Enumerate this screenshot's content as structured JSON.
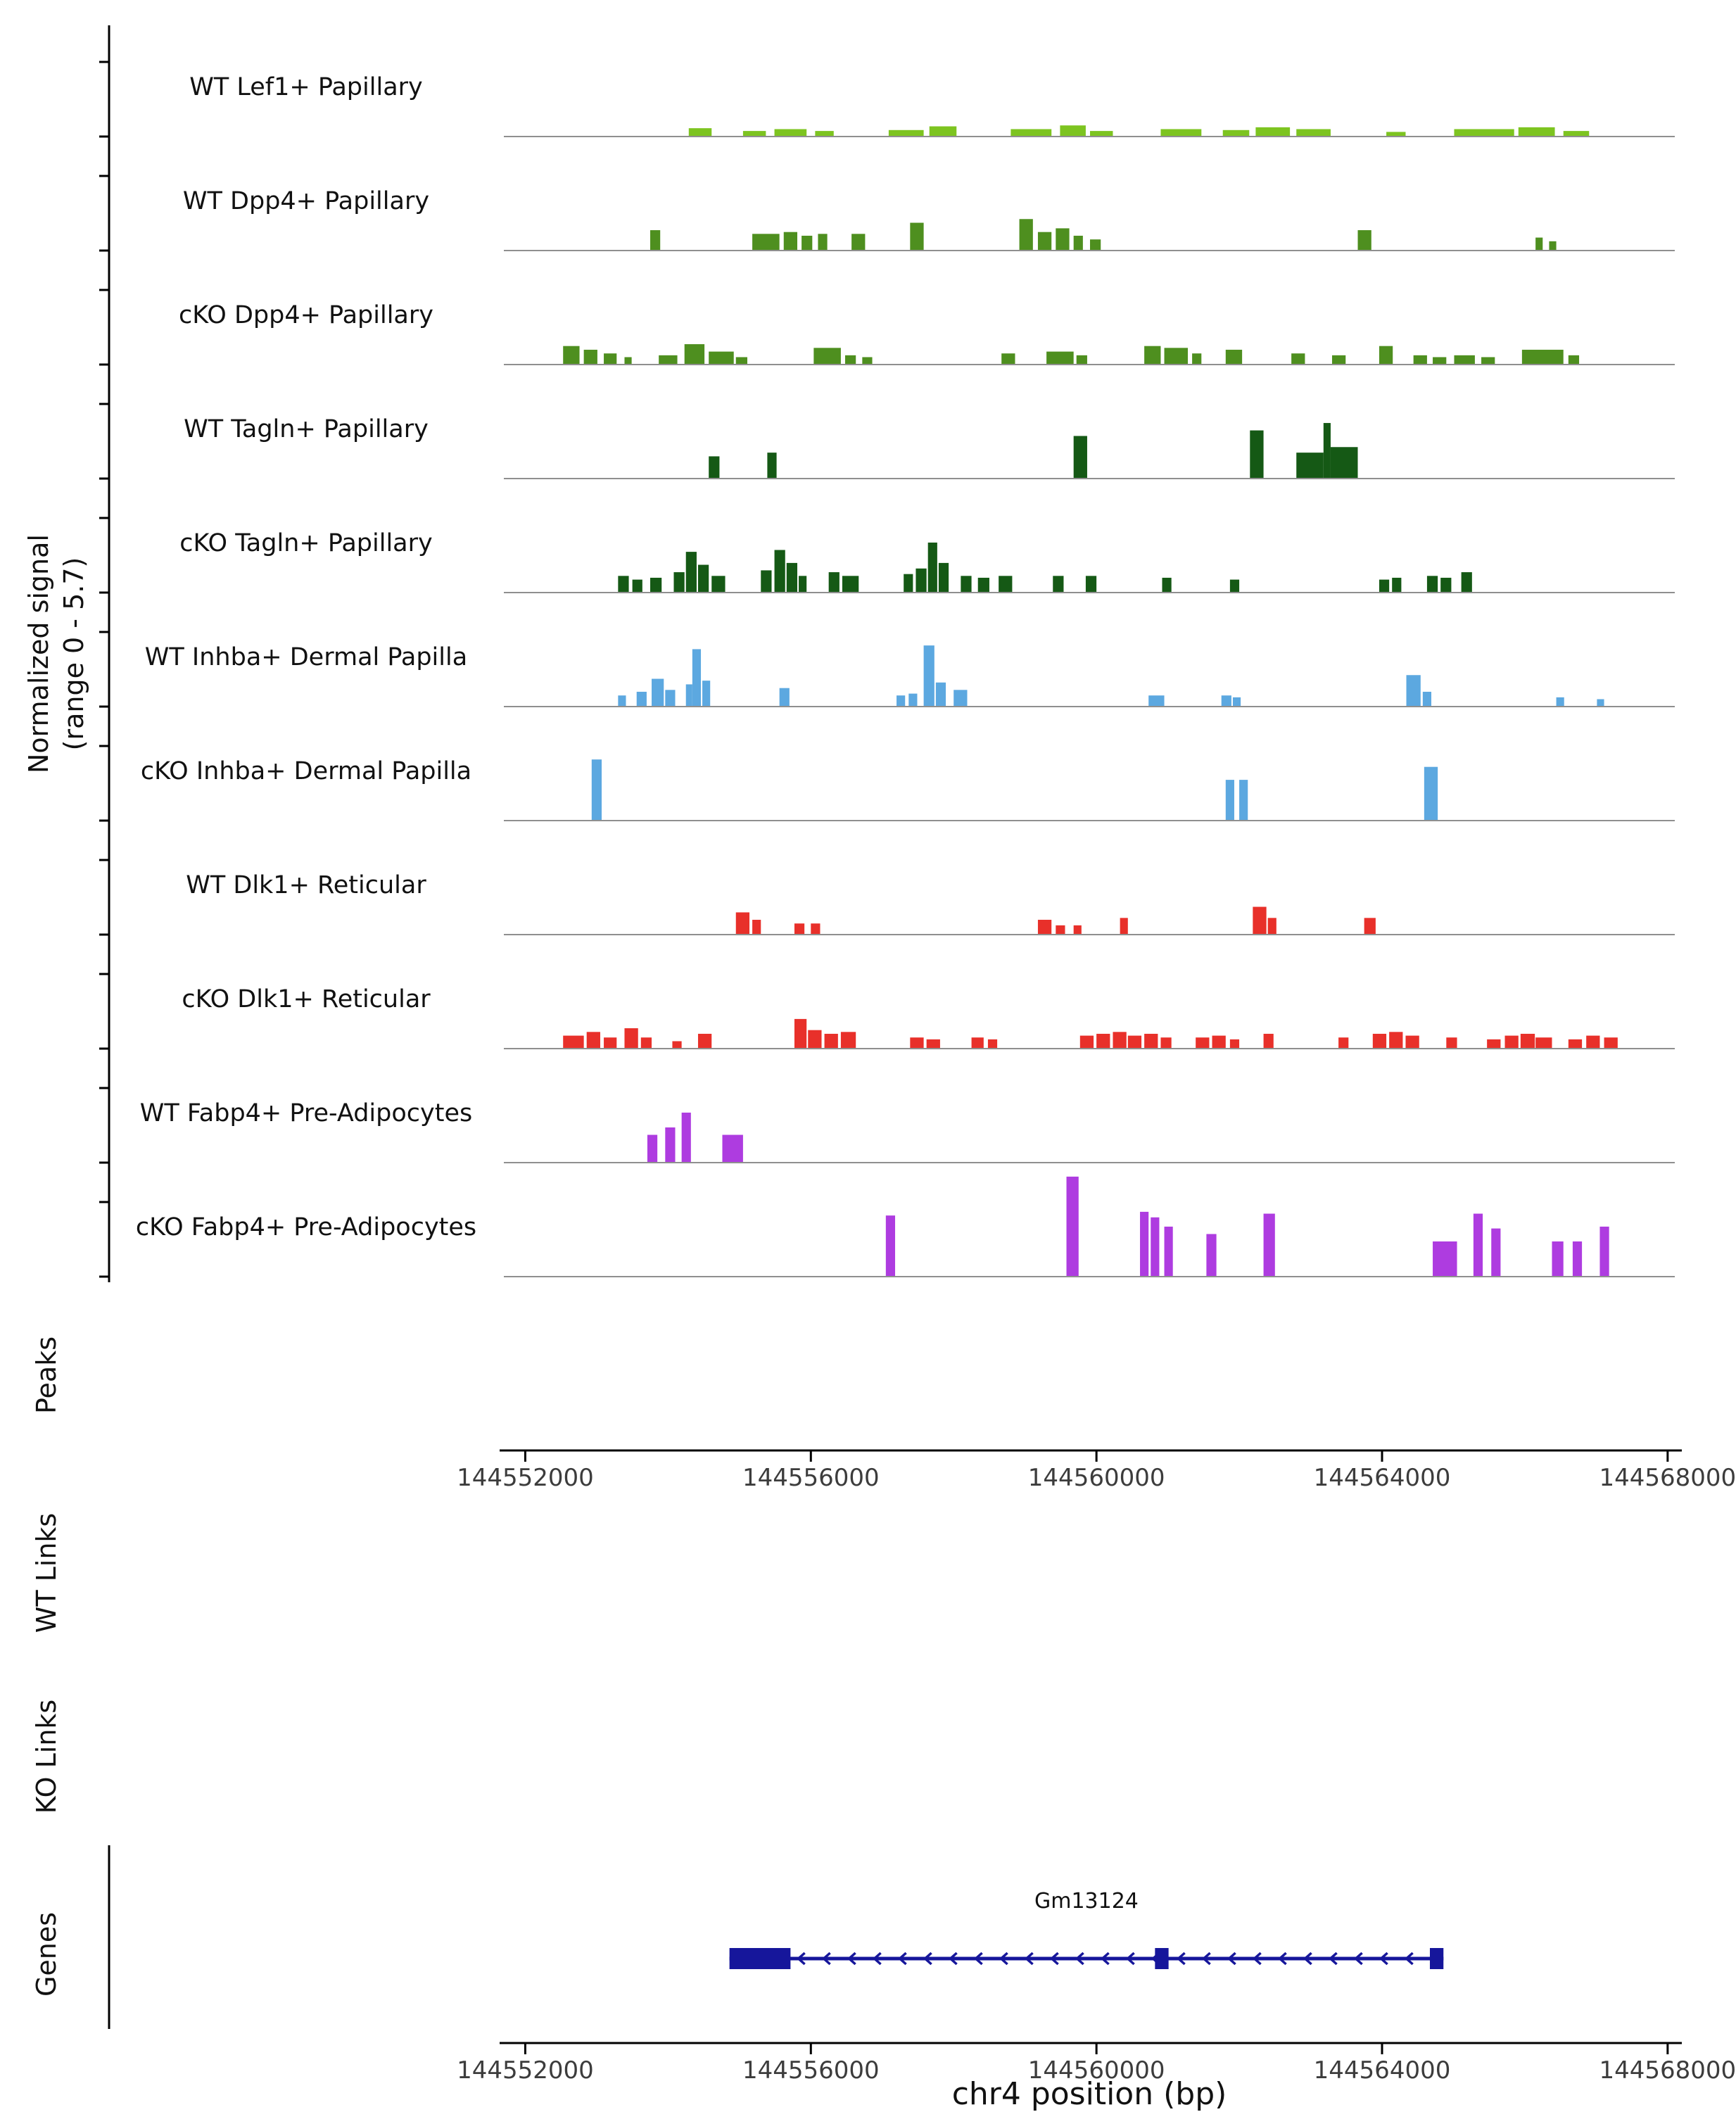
{
  "figure": {
    "y_axis_label_line1": "Normalized signal",
    "y_axis_label_line2": "(range 0 - 5.7)",
    "sections": {
      "peaks": "Peaks",
      "wt_links": "WT Links",
      "ko_links": "KO Links",
      "genes": "Genes"
    },
    "x_axis": {
      "label": "chr4 position (bp)",
      "tick_labels": [
        "144552000",
        "144556000",
        "144560000",
        "144564000",
        "144568000"
      ],
      "ticks": [
        144552000,
        144556000,
        144560000,
        144564000,
        144568000
      ],
      "range": [
        144551700,
        144568100
      ]
    },
    "gene": {
      "name": "Gm13124",
      "start": 144554860,
      "end": 144564860,
      "strand": "-",
      "color": "#16169B",
      "exons": [
        [
          144554860,
          144555715
        ],
        [
          144560820,
          144561010
        ],
        [
          144564670,
          144564860
        ]
      ]
    },
    "baseline_color": "#8f8f8f",
    "axis_color": "#000000"
  },
  "chart_data": {
    "type": "area",
    "title": "",
    "xlabel": "chr4 position (bp)",
    "ylabel": "Normalized signal (range 0 - 5.7)",
    "ylim": [
      0,
      5.7
    ],
    "x_range_bp": [
      144551700,
      144568100
    ],
    "legend_position": "none",
    "grid": false,
    "tracks": [
      {
        "label": "WT Lef1+ Papillary",
        "color": "#7DC420",
        "bars": [
          [
            144554290,
            144554610,
            0.45
          ],
          [
            144555050,
            144555370,
            0.3
          ],
          [
            144555490,
            144555940,
            0.4
          ],
          [
            144556060,
            144556320,
            0.3
          ],
          [
            144557090,
            144557580,
            0.35
          ],
          [
            144557660,
            144558040,
            0.55
          ],
          [
            144558800,
            144559370,
            0.4
          ],
          [
            144559490,
            144559850,
            0.6
          ],
          [
            144559910,
            144560230,
            0.3
          ],
          [
            144560900,
            144561470,
            0.4
          ],
          [
            144561770,
            144562140,
            0.35
          ],
          [
            144562230,
            144562710,
            0.5
          ],
          [
            144562800,
            144563280,
            0.4
          ],
          [
            144564060,
            144564330,
            0.25
          ],
          [
            144565010,
            144565850,
            0.4
          ],
          [
            144565910,
            144566420,
            0.5
          ],
          [
            144566540,
            144566900,
            0.3
          ]
        ]
      },
      {
        "label": "WT Dpp4+ Papillary",
        "color": "#4E8F1F",
        "bars": [
          [
            144553750,
            144553890,
            1.1
          ],
          [
            144555180,
            144555560,
            0.9
          ],
          [
            144555620,
            144555810,
            1.0
          ],
          [
            144555870,
            144556020,
            0.8
          ],
          [
            144556100,
            144556230,
            0.9
          ],
          [
            144556570,
            144556760,
            0.9
          ],
          [
            144557390,
            144557580,
            1.5
          ],
          [
            144558920,
            144559110,
            1.7
          ],
          [
            144559180,
            144559370,
            1.0
          ],
          [
            144559430,
            144559620,
            1.2
          ],
          [
            144559680,
            144559810,
            0.8
          ],
          [
            144559910,
            144560060,
            0.6
          ],
          [
            144563660,
            144563850,
            1.1
          ],
          [
            144566150,
            144566250,
            0.7
          ],
          [
            144566340,
            144566440,
            0.5
          ]
        ]
      },
      {
        "label": "cKO Dpp4+ Papillary",
        "color": "#4E8F1F",
        "bars": [
          [
            144552530,
            144552760,
            1.0
          ],
          [
            144552820,
            144553010,
            0.8
          ],
          [
            144553100,
            144553280,
            0.6
          ],
          [
            144553390,
            144553490,
            0.4
          ],
          [
            144553870,
            144554130,
            0.5
          ],
          [
            144554230,
            144554510,
            1.1
          ],
          [
            144554570,
            144554920,
            0.7
          ],
          [
            144554950,
            144555110,
            0.4
          ],
          [
            144556040,
            144556420,
            0.9
          ],
          [
            144556480,
            144556630,
            0.5
          ],
          [
            144556720,
            144556860,
            0.4
          ],
          [
            144558670,
            144558860,
            0.6
          ],
          [
            144559300,
            144559680,
            0.7
          ],
          [
            144559720,
            144559870,
            0.5
          ],
          [
            144560670,
            144560900,
            1.0
          ],
          [
            144560950,
            144561280,
            0.9
          ],
          [
            144561340,
            144561470,
            0.6
          ],
          [
            144561810,
            144562040,
            0.8
          ],
          [
            144562730,
            144562920,
            0.6
          ],
          [
            144563300,
            144563490,
            0.5
          ],
          [
            144563960,
            144564150,
            1.0
          ],
          [
            144564440,
            144564630,
            0.5
          ],
          [
            144564710,
            144564900,
            0.4
          ],
          [
            144565010,
            144565300,
            0.5
          ],
          [
            144565390,
            144565580,
            0.4
          ],
          [
            144565960,
            144566540,
            0.8
          ],
          [
            144566610,
            144566760,
            0.5
          ]
        ]
      },
      {
        "label": "WT Tagln+ Papillary",
        "color": "#155915",
        "bars": [
          [
            144554570,
            144554720,
            1.2
          ],
          [
            144555390,
            144555520,
            1.4
          ],
          [
            144559680,
            144559870,
            2.3
          ],
          [
            144562150,
            144562340,
            2.6
          ],
          [
            144562800,
            144563180,
            1.4
          ],
          [
            144563180,
            144563280,
            3.0
          ],
          [
            144563280,
            144563660,
            1.7
          ]
        ]
      },
      {
        "label": "cKO Tagln+ Papillary",
        "color": "#155915",
        "bars": [
          [
            144553300,
            144553450,
            0.9
          ],
          [
            144553500,
            144553640,
            0.7
          ],
          [
            144553750,
            144553910,
            0.8
          ],
          [
            144554080,
            144554230,
            1.1
          ],
          [
            144554250,
            144554400,
            2.2
          ],
          [
            144554420,
            144554570,
            1.5
          ],
          [
            144554610,
            144554800,
            0.9
          ],
          [
            144555300,
            144555450,
            1.2
          ],
          [
            144555490,
            144555640,
            2.3
          ],
          [
            144555660,
            144555810,
            1.6
          ],
          [
            144555830,
            144555940,
            0.9
          ],
          [
            144556250,
            144556400,
            1.1
          ],
          [
            144556440,
            144556670,
            0.9
          ],
          [
            144557300,
            144557430,
            1.0
          ],
          [
            144557470,
            144557620,
            1.3
          ],
          [
            144557640,
            144557770,
            2.7
          ],
          [
            144557790,
            144557930,
            1.6
          ],
          [
            144558100,
            144558250,
            0.9
          ],
          [
            144558340,
            144558500,
            0.8
          ],
          [
            144558630,
            144558820,
            0.9
          ],
          [
            144559390,
            144559540,
            0.9
          ],
          [
            144559850,
            144560000,
            0.9
          ],
          [
            144560920,
            144561050,
            0.8
          ],
          [
            144561870,
            144562000,
            0.7
          ],
          [
            144563960,
            144564100,
            0.7
          ],
          [
            144564140,
            144564270,
            0.8
          ],
          [
            144564630,
            144564780,
            0.9
          ],
          [
            144564820,
            144564970,
            0.8
          ],
          [
            144565110,
            144565260,
            1.1
          ]
        ]
      },
      {
        "label": "WT Inhba+ Dermal Papilla",
        "color": "#5CA8E0",
        "bars": [
          [
            144553300,
            144553410,
            0.6
          ],
          [
            144553560,
            144553700,
            0.8
          ],
          [
            144553770,
            144553940,
            1.5
          ],
          [
            144553960,
            144554100,
            0.9
          ],
          [
            144554250,
            144554340,
            1.2
          ],
          [
            144554340,
            144554460,
            3.1
          ],
          [
            144554480,
            144554590,
            1.4
          ],
          [
            144555560,
            144555700,
            1.0
          ],
          [
            144557200,
            144557320,
            0.6
          ],
          [
            144557370,
            144557490,
            0.7
          ],
          [
            144557580,
            144557730,
            3.3
          ],
          [
            144557750,
            144557890,
            1.3
          ],
          [
            144558000,
            144558190,
            0.9
          ],
          [
            144560730,
            144560950,
            0.6
          ],
          [
            144561750,
            144561890,
            0.6
          ],
          [
            144561910,
            144562020,
            0.5
          ],
          [
            144564340,
            144564540,
            1.7
          ],
          [
            144564570,
            144564690,
            0.8
          ],
          [
            144566440,
            144566550,
            0.5
          ],
          [
            144567010,
            144567110,
            0.4
          ]
        ]
      },
      {
        "label": "cKO Inhba+ Dermal Papilla",
        "color": "#5CA8E0",
        "bars": [
          [
            144552930,
            144553070,
            3.3
          ],
          [
            144561810,
            144561930,
            2.2
          ],
          [
            144562000,
            144562120,
            2.2
          ],
          [
            144564590,
            144564780,
            2.9
          ]
        ]
      },
      {
        "label": "WT Dlk1+ Reticular",
        "color": "#E8302A",
        "bars": [
          [
            144554950,
            144555140,
            1.2
          ],
          [
            144555180,
            144555300,
            0.8
          ],
          [
            144555770,
            144555910,
            0.6
          ],
          [
            144556000,
            144556130,
            0.6
          ],
          [
            144559180,
            144559370,
            0.8
          ],
          [
            144559430,
            144559560,
            0.5
          ],
          [
            144559680,
            144559790,
            0.5
          ],
          [
            144560330,
            144560440,
            0.9
          ],
          [
            144562190,
            144562380,
            1.5
          ],
          [
            144562400,
            144562520,
            0.9
          ],
          [
            144563750,
            144563910,
            0.9
          ]
        ]
      },
      {
        "label": "cKO Dlk1+ Reticular",
        "color": "#E8302A",
        "bars": [
          [
            144552530,
            144552820,
            0.7
          ],
          [
            144552860,
            144553050,
            0.9
          ],
          [
            144553100,
            144553280,
            0.6
          ],
          [
            144553390,
            144553580,
            1.1
          ],
          [
            144553620,
            144553770,
            0.6
          ],
          [
            144554060,
            144554190,
            0.4
          ],
          [
            144554420,
            144554610,
            0.8
          ],
          [
            144555770,
            144555940,
            1.6
          ],
          [
            144555960,
            144556150,
            1.0
          ],
          [
            144556190,
            144556380,
            0.8
          ],
          [
            144556420,
            144556630,
            0.9
          ],
          [
            144557390,
            144557580,
            0.6
          ],
          [
            144557620,
            144557810,
            0.5
          ],
          [
            144558250,
            144558420,
            0.6
          ],
          [
            144558480,
            144558610,
            0.5
          ],
          [
            144559770,
            144559960,
            0.7
          ],
          [
            144560000,
            144560190,
            0.8
          ],
          [
            144560230,
            144560420,
            0.9
          ],
          [
            144560440,
            144560630,
            0.7
          ],
          [
            144560670,
            144560860,
            0.8
          ],
          [
            144560900,
            144561050,
            0.6
          ],
          [
            144561390,
            144561580,
            0.6
          ],
          [
            144561620,
            144561810,
            0.7
          ],
          [
            144561870,
            144562000,
            0.5
          ],
          [
            144562340,
            144562480,
            0.8
          ],
          [
            144563390,
            144563530,
            0.6
          ],
          [
            144563870,
            144564060,
            0.8
          ],
          [
            144564100,
            144564290,
            0.9
          ],
          [
            144564330,
            144564520,
            0.7
          ],
          [
            144564900,
            144565050,
            0.6
          ],
          [
            144565470,
            144565660,
            0.5
          ],
          [
            144565720,
            144565910,
            0.7
          ],
          [
            144565940,
            144566140,
            0.8
          ],
          [
            144566150,
            144566380,
            0.6
          ],
          [
            144566610,
            144566800,
            0.5
          ],
          [
            144566860,
            144567050,
            0.7
          ],
          [
            144567110,
            144567300,
            0.6
          ]
        ]
      },
      {
        "label": "WT Fabp4+ Pre-Adipocytes",
        "color": "#AE3CE0",
        "bars": [
          [
            144553710,
            144553850,
            1.5
          ],
          [
            144553960,
            144554100,
            1.9
          ],
          [
            144554190,
            144554320,
            2.7
          ],
          [
            144554760,
            144555050,
            1.5
          ]
        ]
      },
      {
        "label": "cKO Fabp4+ Pre-Adipocytes",
        "color": "#AE3CE0",
        "bars": [
          [
            144557050,
            144557180,
            3.3
          ],
          [
            144559580,
            144559750,
            5.4
          ],
          [
            144560610,
            144560730,
            3.5
          ],
          [
            144560760,
            144560880,
            3.2
          ],
          [
            144560950,
            144561070,
            2.7
          ],
          [
            144561540,
            144561680,
            2.3
          ],
          [
            144562340,
            144562500,
            3.4
          ],
          [
            144564710,
            144565050,
            1.9
          ],
          [
            144565280,
            144565410,
            3.4
          ],
          [
            144565530,
            144565660,
            2.6
          ],
          [
            144566380,
            144566540,
            1.9
          ],
          [
            144566670,
            144566800,
            1.9
          ],
          [
            144567050,
            144567180,
            2.7
          ]
        ]
      }
    ]
  }
}
